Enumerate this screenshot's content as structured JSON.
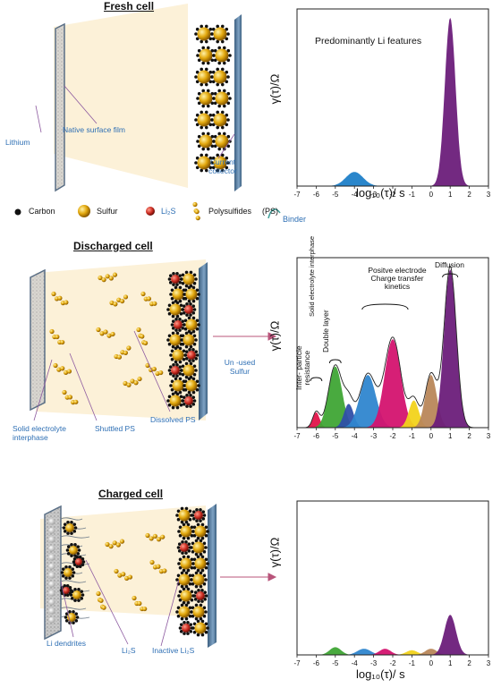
{
  "panels": {
    "fresh": {
      "title": "Fresh cell",
      "labels": {
        "lithium": "Lithium",
        "native_film": "Native surface film",
        "current_collector_1": "Current",
        "current_collector_2": "collector"
      }
    },
    "legend": {
      "carbon": "Carbon",
      "sulfur": "Sulfur",
      "li2s": "Li₂S",
      "polysulfides": "Polysulfides",
      "ps": "(PS)",
      "binder": "Binder"
    },
    "discharged": {
      "title": "Discharged cell",
      "labels": {
        "sei_1": "Solid electrolyte",
        "sei_2": "interphase",
        "shuttled": "Shuttled PS",
        "dissolved": "Dissolved PS",
        "unused_1": "Un -used",
        "unused_2": "Sulfur"
      }
    },
    "charged": {
      "title": "Charged cell",
      "labels": {
        "dendrites": "Li dendrites",
        "li2s": "Li₂S",
        "inactive": "Inactive Li₂S"
      }
    }
  },
  "chart_data": [
    {
      "type": "area",
      "annotation": "Predominantly Li features",
      "ylabel": "γ(τ)/Ω",
      "xlabel": "log₁₀(τ)/ s",
      "xlim": [
        -7,
        3
      ],
      "x_ticks": [
        "-7",
        "-6",
        "-5",
        "-4",
        "-3",
        "-2",
        "-1",
        "0",
        "1",
        "2",
        "3"
      ],
      "series": [
        {
          "peak_x": -4.0,
          "height": 0.08,
          "width": 0.45,
          "color": "#1f7fc8"
        },
        {
          "peak_x": 1.0,
          "height": 0.95,
          "width": 0.28,
          "color": "#6b1d7a"
        }
      ]
    },
    {
      "type": "area",
      "ylabel": "γ(τ)/Ω",
      "xlabel": "",
      "xlim": [
        -7,
        3
      ],
      "x_ticks": [
        "-7",
        "-6",
        "-5",
        "-4",
        "-3",
        "-2",
        "-1",
        "0",
        "1",
        "2",
        "3"
      ],
      "annotations": {
        "diffusion": "Diffusion",
        "positive_1": "Positve electrode",
        "positive_2": "Charge transfer",
        "positive_3": "kinetics",
        "sei": "Solid electrolyte interphase",
        "double_layer": "Double layer",
        "inter_1": "Inter- particle",
        "inter_2": "resistance"
      },
      "series": [
        {
          "peak_x": -6.0,
          "height": 0.09,
          "width": 0.18,
          "color": "#e0144a"
        },
        {
          "peak_x": -5.0,
          "height": 0.36,
          "width": 0.35,
          "color": "#3fa535"
        },
        {
          "peak_x": -4.3,
          "height": 0.14,
          "width": 0.25,
          "color": "#2f4fa8"
        },
        {
          "peak_x": -3.3,
          "height": 0.31,
          "width": 0.42,
          "color": "#2f86cf"
        },
        {
          "peak_x": -2.0,
          "height": 0.52,
          "width": 0.42,
          "color": "#d4136f"
        },
        {
          "peak_x": -0.9,
          "height": 0.16,
          "width": 0.26,
          "color": "#f2d31b"
        },
        {
          "peak_x": 0.0,
          "height": 0.31,
          "width": 0.3,
          "color": "#b9875a"
        },
        {
          "peak_x": 1.0,
          "height": 0.93,
          "width": 0.32,
          "color": "#6b1d7a"
        }
      ]
    },
    {
      "type": "area",
      "ylabel": "γ(τ)/Ω",
      "xlabel": "log₁₀(τ)/ s",
      "xlim": [
        -7,
        3
      ],
      "x_ticks": [
        "-7",
        "-6",
        "-5",
        "-4",
        "-3",
        "-2",
        "-1",
        "0",
        "1",
        "2",
        "3"
      ],
      "series": [
        {
          "peak_x": -5.0,
          "height": 0.05,
          "width": 0.3,
          "color": "#3fa535"
        },
        {
          "peak_x": -3.5,
          "height": 0.04,
          "width": 0.35,
          "color": "#2f86cf"
        },
        {
          "peak_x": -2.4,
          "height": 0.04,
          "width": 0.3,
          "color": "#d4136f"
        },
        {
          "peak_x": -1.0,
          "height": 0.03,
          "width": 0.3,
          "color": "#f2d31b"
        },
        {
          "peak_x": 0.0,
          "height": 0.04,
          "width": 0.3,
          "color": "#b9875a"
        },
        {
          "peak_x": 1.0,
          "height": 0.26,
          "width": 0.3,
          "color": "#6b1d7a"
        }
      ]
    }
  ],
  "colors": {
    "cell_bg": "#fcf1d8",
    "label_blue": "#2e6fb4",
    "sulfur": "#e3a90f",
    "li2s": "#cc2d22",
    "carbon": "#111111",
    "arrow": "#b8547a"
  }
}
